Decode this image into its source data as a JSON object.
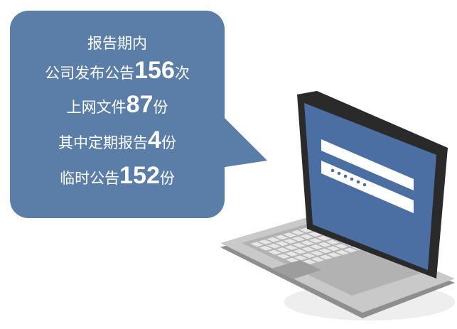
{
  "lines": [
    {
      "text": "报告期内"
    },
    {
      "prefix": "公司发布公告",
      "number": 156,
      "suffix": "次"
    },
    {
      "prefix": "上网文件",
      "number": 87,
      "suffix": "份"
    },
    {
      "prefix": "其中定期报告",
      "number": 4,
      "suffix": "份"
    },
    {
      "prefix": "临时公告",
      "number": 152,
      "suffix": "份"
    }
  ]
}
